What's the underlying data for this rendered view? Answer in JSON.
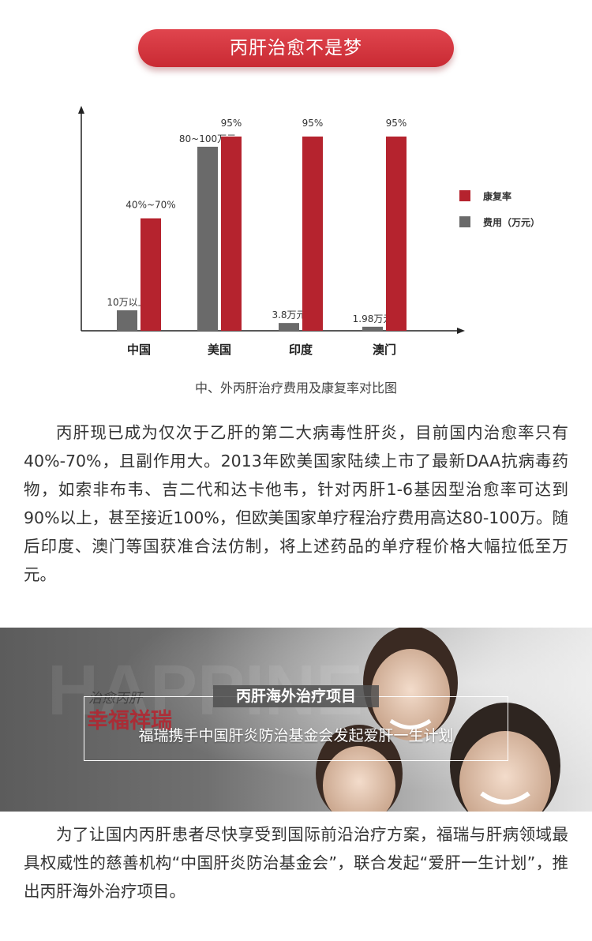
{
  "header": {
    "title": "丙肝治愈不是梦"
  },
  "chart_data": {
    "type": "bar",
    "categories": [
      "中国",
      "美国",
      "印度",
      "澳门"
    ],
    "series": [
      {
        "name": "康复率",
        "color": "#b5232e",
        "values": [
          55,
          95,
          95,
          95
        ],
        "labels": [
          "40%~70%",
          "95%",
          "95%",
          "95%"
        ]
      },
      {
        "name": "费用（万元）",
        "color": "#6a6a6a",
        "values": [
          10,
          90,
          3.8,
          1.98
        ],
        "labels": [
          "10万以上",
          "80~100万元",
          "3.8万元",
          "1.98万元"
        ]
      }
    ],
    "ylim": [
      0,
      100
    ],
    "legend_position": "right",
    "grid": false,
    "caption": "中、外丙肝治疗费用及康复率对比图"
  },
  "para1": "丙肝现已成为仅次于乙肝的第二大病毒性肝炎，目前国内治愈率只有40%-70%，且副作用大。2013年欧美国家陆续上市了最新DAA抗病毒药物，如索非布韦、吉二代和达卡他韦，针对丙肝1-6基因型治愈率可达到90%以上，甚至接近100%，但欧美国家单疗程治疗费用高达80-100万。随后印度、澳门等国获准合法仿制，将上述药品的单疗程价格大幅拉低至万元。",
  "banner": {
    "logo_top": "治愈丙肝",
    "logo_bottom": "幸福祥瑞",
    "title": "丙肝海外治疗项目",
    "subtitle": "福瑞携手中国肝炎防治基金会发起爱肝一生计划"
  },
  "para2": "为了让国内丙肝患者尽快享受到国际前沿治疗方案，福瑞与肝病领域最具权威性的慈善机构“中国肝炎防治基金会”，联合发起“爱肝一生计划”，推出丙肝海外治疗项目。"
}
